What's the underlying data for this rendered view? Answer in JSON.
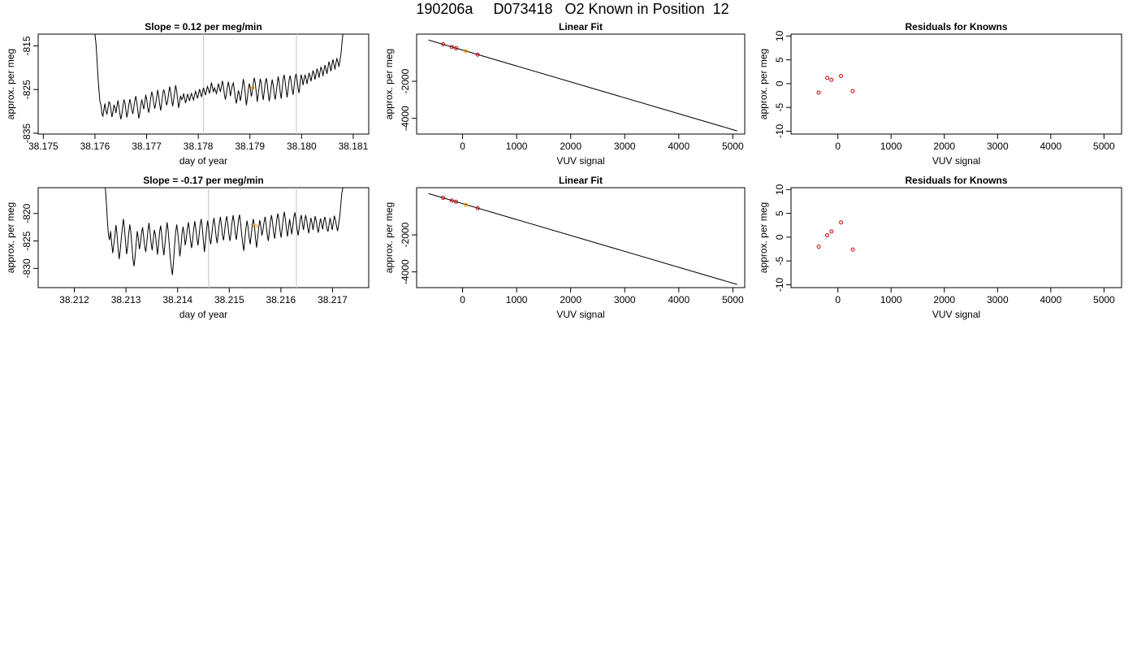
{
  "page": {
    "title": "190206a     D073418   O2 Known in Position  12"
  },
  "colors": {
    "axis": "#000000",
    "line": "#000000",
    "marker_red": "#cc0000",
    "marker_orange": "#ff9900",
    "vline": "#cccccc"
  },
  "chart_data": [
    {
      "type": "line",
      "title": "Slope =  0.12  per meg/min",
      "xlabel": "day of year",
      "ylabel": "approx. per meg",
      "xlim": [
        38.1749,
        38.1813
      ],
      "ylim": [
        -835.2,
        -812.3
      ],
      "xticks": [
        38.175,
        38.176,
        38.177,
        38.178,
        38.179,
        38.18,
        38.181
      ],
      "xtick_labels": [
        "38.175",
        "38.176",
        "38.177",
        "38.178",
        "38.179",
        "38.180",
        "38.181"
      ],
      "yticks": [
        -815,
        -825,
        -835
      ],
      "ytick_labels": [
        "-815",
        "-825",
        "-835"
      ],
      "vlines": [
        38.1781,
        38.1799
      ],
      "series_start": 38.176,
      "series_end": 38.1808,
      "series_y": [
        -812.3,
        -814.5,
        -818.0,
        -822.0,
        -825.2,
        -827.8,
        -828.5,
        -830.6,
        -831.1,
        -829.5,
        -828.2,
        -830.0,
        -830.6,
        -829.3,
        -827.8,
        -828.1,
        -829.6,
        -831.3,
        -830.2,
        -828.6,
        -829.0,
        -830.4,
        -829.0,
        -827.5,
        -828.8,
        -830.5,
        -831.8,
        -830.6,
        -829.0,
        -827.3,
        -827.9,
        -829.7,
        -831.4,
        -830.2,
        -828.5,
        -827.2,
        -828.2,
        -829.7,
        -830.6,
        -829.1,
        -827.6,
        -826.5,
        -827.9,
        -829.8,
        -831.6,
        -830.4,
        -828.6,
        -827.3,
        -828.4,
        -829.5,
        -828.0,
        -826.2,
        -827.3,
        -829.2,
        -830.3,
        -828.9,
        -826.9,
        -825.5,
        -826.4,
        -828.1,
        -829.4,
        -828.3,
        -826.6,
        -825.1,
        -826.5,
        -828.4,
        -829.8,
        -828.1,
        -826.2,
        -825.0,
        -825.8,
        -827.5,
        -828.6,
        -827.6,
        -825.9,
        -824.3,
        -825.6,
        -827.3,
        -828.8,
        -827.4,
        -825.7,
        -824.0,
        -825.2,
        -827.2,
        -829.2,
        -827.9,
        -826.4,
        -827.3,
        -827.1,
        -825.9,
        -826.9,
        -828.1,
        -827.2,
        -826.0,
        -826.8,
        -827.6,
        -826.5,
        -825.9,
        -826.8,
        -827.4,
        -826.3,
        -825.4,
        -826.2,
        -827.0,
        -826.0,
        -824.9,
        -825.8,
        -826.7,
        -825.6,
        -824.6,
        -825.4,
        -826.3,
        -825.2,
        -824.3,
        -825.0,
        -825.9,
        -824.8,
        -823.4,
        -824.5,
        -825.6,
        -824.6,
        -825.2,
        -825.9,
        -824.8,
        -823.6,
        -824.7,
        -825.5,
        -824.3,
        -823.0,
        -824.2,
        -826.1,
        -827.3,
        -826.0,
        -824.4,
        -823.2,
        -824.6,
        -826.5,
        -825.2,
        -824.0,
        -823.5,
        -825.1,
        -827.0,
        -828.2,
        -826.8,
        -825.2,
        -826.0,
        -827.6,
        -826.3,
        -824.5,
        -822.6,
        -823.9,
        -826.2,
        -828.6,
        -827.1,
        -825.0,
        -823.6,
        -824.7,
        -826.6,
        -825.6,
        -823.6,
        -822.3,
        -823.5,
        -825.7,
        -827.8,
        -826.0,
        -824.2,
        -822.5,
        -823.6,
        -825.8,
        -827.4,
        -825.5,
        -823.5,
        -822.4,
        -823.7,
        -825.9,
        -827.7,
        -826.2,
        -824.3,
        -822.7,
        -823.9,
        -826.0,
        -827.3,
        -825.7,
        -823.8,
        -822.0,
        -823.4,
        -825.5,
        -827.1,
        -825.0,
        -822.6,
        -821.6,
        -823.2,
        -825.2,
        -826.8,
        -824.9,
        -822.8,
        -821.8,
        -823.1,
        -825.0,
        -826.2,
        -824.3,
        -822.2,
        -821.4,
        -822.9,
        -824.7,
        -825.8,
        -823.6,
        -821.6,
        -822.4,
        -824.0,
        -822.7,
        -821.6,
        -822.5,
        -823.7,
        -822.4,
        -821.2,
        -822.0,
        -823.1,
        -821.8,
        -820.6,
        -821.4,
        -822.7,
        -821.5,
        -820.2,
        -821.0,
        -822.3,
        -821.0,
        -819.8,
        -820.6,
        -821.9,
        -820.6,
        -819.4,
        -820.3,
        -821.4,
        -820.0,
        -818.6,
        -819.5,
        -820.8,
        -819.3,
        -818.1,
        -819.2,
        -820.4,
        -819.0,
        -817.9,
        -818.6,
        -819.8,
        -818.4,
        -817.0,
        -814.5,
        -812.3
      ],
      "marker": {
        "x": 38.17905,
        "y": -824.6,
        "color_ref": "marker_orange"
      }
    },
    {
      "type": "line",
      "title": "Linear Fit",
      "xlabel": "VUV signal",
      "ylabel": "approx. per meg",
      "xlim": [
        -850,
        5220
      ],
      "ylim": [
        -4850,
        550
      ],
      "xticks": [
        0,
        1000,
        2000,
        3000,
        4000,
        5000
      ],
      "xtick_labels": [
        "0",
        "1000",
        "2000",
        "3000",
        "4000",
        "5000"
      ],
      "yticks": [
        -2000,
        -4000
      ],
      "ytick_labels": [
        "-2000",
        "-4000"
      ],
      "fit_line": [
        [
          -630,
          230
        ],
        [
          5080,
          -4680
        ]
      ],
      "points": [
        {
          "x": -360,
          "y": 0,
          "color_ref": "marker_red"
        },
        {
          "x": -200,
          "y": -145,
          "color_ref": "marker_red"
        },
        {
          "x": -120,
          "y": -210,
          "color_ref": "marker_red"
        },
        {
          "x": 60,
          "y": -375,
          "color_ref": "marker_orange"
        },
        {
          "x": 280,
          "y": -560,
          "color_ref": "marker_red"
        }
      ]
    },
    {
      "type": "scatter",
      "title": "Residuals for Knowns",
      "xlabel": "VUV signal",
      "ylabel": "approx. per meg",
      "xlim": [
        -880,
        5330
      ],
      "ylim": [
        -10.6,
        10.4
      ],
      "xticks": [
        0,
        1000,
        2000,
        3000,
        4000,
        5000
      ],
      "xtick_labels": [
        "0",
        "1000",
        "2000",
        "3000",
        "4000",
        "5000"
      ],
      "yticks": [
        10,
        5,
        0,
        -5,
        -10
      ],
      "ytick_labels": [
        "10",
        "5",
        "0",
        "-5",
        "-10"
      ],
      "points": [
        {
          "x": -360,
          "y": -1.9
        },
        {
          "x": -200,
          "y": 1.2
        },
        {
          "x": -120,
          "y": 0.8
        },
        {
          "x": 60,
          "y": 1.6
        },
        {
          "x": 280,
          "y": -1.6
        }
      ]
    },
    {
      "type": "line",
      "title": "Slope =  -0.17  per meg/min",
      "xlabel": "day of year",
      "ylabel": "approx. per meg",
      "xlim": [
        38.2113,
        38.2177
      ],
      "ylim": [
        -833.5,
        -815.3
      ],
      "xticks": [
        38.212,
        38.213,
        38.214,
        38.215,
        38.216,
        38.217
      ],
      "xtick_labels": [
        "38.212",
        "38.213",
        "38.214",
        "38.215",
        "38.216",
        "38.217"
      ],
      "yticks": [
        -820,
        -825,
        -830
      ],
      "ytick_labels": [
        "-820",
        "-825",
        "-830"
      ],
      "vlines": [
        38.2146,
        38.2163
      ],
      "series_start": 38.2126,
      "series_end": 38.2172,
      "series_y": [
        -815.3,
        -818.0,
        -821.5,
        -824.0,
        -824.8,
        -823.2,
        -825.5,
        -827.2,
        -825.6,
        -824.0,
        -822.1,
        -823.8,
        -826.4,
        -828.3,
        -826.7,
        -824.5,
        -822.6,
        -821.0,
        -822.8,
        -825.2,
        -827.4,
        -826.0,
        -823.6,
        -822.0,
        -823.5,
        -826.0,
        -828.4,
        -829.6,
        -827.8,
        -825.3,
        -823.2,
        -824.5,
        -826.5,
        -825.4,
        -823.5,
        -822.5,
        -824.2,
        -826.1,
        -827.0,
        -825.2,
        -823.1,
        -821.7,
        -823.4,
        -825.4,
        -826.7,
        -824.8,
        -823.0,
        -823.8,
        -825.7,
        -827.5,
        -825.5,
        -823.3,
        -822.2,
        -823.9,
        -826.1,
        -827.6,
        -825.6,
        -823.4,
        -821.6,
        -823.1,
        -825.6,
        -828.1,
        -829.9,
        -831.2,
        -828.8,
        -825.9,
        -823.5,
        -822.0,
        -823.4,
        -825.6,
        -827.8,
        -826.0,
        -823.7,
        -822.4,
        -823.8,
        -825.8,
        -824.6,
        -822.8,
        -821.6,
        -823.1,
        -825.0,
        -826.3,
        -824.7,
        -822.8,
        -821.4,
        -822.9,
        -824.6,
        -825.8,
        -824.0,
        -822.1,
        -821.0,
        -822.5,
        -824.8,
        -827.0,
        -825.2,
        -823.0,
        -821.3,
        -822.7,
        -824.6,
        -825.6,
        -823.8,
        -821.9,
        -820.8,
        -822.3,
        -824.2,
        -825.4,
        -823.6,
        -821.8,
        -820.6,
        -822.1,
        -824.0,
        -824.9,
        -823.2,
        -821.5,
        -820.5,
        -821.9,
        -823.8,
        -825.0,
        -823.5,
        -821.5,
        -820.3,
        -821.7,
        -823.6,
        -824.8,
        -823.0,
        -821.2,
        -820.2,
        -821.8,
        -823.8,
        -825.5,
        -826.8,
        -824.6,
        -822.7,
        -821.3,
        -822.5,
        -824.3,
        -825.6,
        -823.8,
        -822.0,
        -821.0,
        -822.4,
        -824.6,
        -826.2,
        -824.4,
        -822.5,
        -821.2,
        -822.4,
        -824.0,
        -823.0,
        -821.6,
        -820.6,
        -822.0,
        -823.9,
        -825.0,
        -823.2,
        -821.4,
        -820.3,
        -821.6,
        -823.5,
        -824.6,
        -822.8,
        -821.0,
        -820.0,
        -821.3,
        -823.1,
        -824.4,
        -822.7,
        -820.9,
        -819.7,
        -821.0,
        -822.8,
        -824.2,
        -822.6,
        -821.0,
        -822.4,
        -823.8,
        -822.3,
        -820.6,
        -819.8,
        -821.2,
        -822.9,
        -824.0,
        -822.6,
        -821.0,
        -820.3,
        -821.8,
        -823.0,
        -821.5,
        -820.3,
        -821.1,
        -822.6,
        -823.6,
        -822.1,
        -820.8,
        -821.7,
        -823.0,
        -821.7,
        -820.5,
        -821.4,
        -822.7,
        -823.5,
        -822.0,
        -820.9,
        -821.8,
        -822.9,
        -821.5,
        -820.6,
        -821.6,
        -822.7,
        -823.3,
        -822.0,
        -820.8,
        -821.9,
        -823.0,
        -821.7,
        -820.4,
        -821.2,
        -822.3,
        -823.2,
        -822.0,
        -820.6,
        -818.5,
        -816.3,
        -815.3
      ],
      "marker": {
        "x": 38.2155,
        "y": -822.3,
        "color_ref": "marker_orange"
      }
    },
    {
      "type": "line",
      "title": "Linear Fit",
      "xlabel": "VUV signal",
      "ylabel": "approx. per meg",
      "xlim": [
        -850,
        5220
      ],
      "ylim": [
        -4850,
        550
      ],
      "xticks": [
        0,
        1000,
        2000,
        3000,
        4000,
        5000
      ],
      "xtick_labels": [
        "0",
        "1000",
        "2000",
        "3000",
        "4000",
        "5000"
      ],
      "yticks": [
        -2000,
        -4000
      ],
      "ytick_labels": [
        "-2000",
        "-4000"
      ],
      "fit_line": [
        [
          -630,
          230
        ],
        [
          5080,
          -4680
        ]
      ],
      "points": [
        {
          "x": -360,
          "y": 0,
          "color_ref": "marker_red"
        },
        {
          "x": -200,
          "y": -145,
          "color_ref": "marker_red"
        },
        {
          "x": -120,
          "y": -210,
          "color_ref": "marker_red"
        },
        {
          "x": 60,
          "y": -375,
          "color_ref": "marker_orange"
        },
        {
          "x": 280,
          "y": -560,
          "color_ref": "marker_red"
        }
      ]
    },
    {
      "type": "scatter",
      "title": "Residuals for Knowns",
      "xlabel": "VUV signal",
      "ylabel": "approx. per meg",
      "xlim": [
        -880,
        5330
      ],
      "ylim": [
        -10.6,
        10.4
      ],
      "xticks": [
        0,
        1000,
        2000,
        3000,
        4000,
        5000
      ],
      "xtick_labels": [
        "0",
        "1000",
        "2000",
        "3000",
        "4000",
        "5000"
      ],
      "yticks": [
        10,
        5,
        0,
        -5,
        -10
      ],
      "ytick_labels": [
        "10",
        "5",
        "0",
        "-5",
        "-10"
      ],
      "points": [
        {
          "x": -360,
          "y": -2.0
        },
        {
          "x": -200,
          "y": 0.4
        },
        {
          "x": -120,
          "y": 1.2
        },
        {
          "x": 60,
          "y": 3.1
        },
        {
          "x": 280,
          "y": -2.6
        }
      ]
    }
  ]
}
